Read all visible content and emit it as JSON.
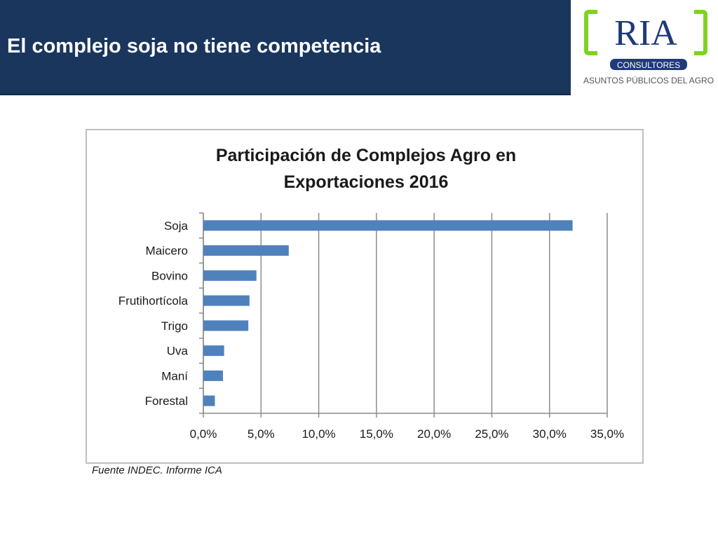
{
  "header": {
    "title": "El complejo soja no tiene competencia"
  },
  "logo": {
    "name": "RIA",
    "tagline": "CONSULTORES",
    "subtitle": "ASUNTOS PÚBLICOS DEL AGRO",
    "colors": {
      "bracket": "#7ed321",
      "text": "#1f3a7a",
      "band": "#1f3a7a",
      "subtitle": "#555555"
    }
  },
  "chart_data": {
    "type": "bar",
    "orientation": "horizontal",
    "title_lines": [
      "Participación de Complejos Agro en",
      "Exportaciones 2016"
    ],
    "categories": [
      "Soja",
      "Maicero",
      "Bovino",
      "Frutihortícola",
      "Trigo",
      "Uva",
      "Maní",
      "Forestal"
    ],
    "values": [
      32.0,
      7.4,
      4.6,
      4.0,
      3.9,
      1.8,
      1.7,
      1.0
    ],
    "xlim": [
      0,
      35
    ],
    "x_ticks": [
      0,
      5,
      10,
      15,
      20,
      25,
      30,
      35
    ],
    "x_tick_labels": [
      "0,0%",
      "5,0%",
      "10,0%",
      "15,0%",
      "20,0%",
      "25,0%",
      "30,0%",
      "35,0%"
    ],
    "grid": true,
    "legend": "none",
    "bar_color": "#4f81bd"
  },
  "source": "Fuente INDEC. Informe ICA"
}
